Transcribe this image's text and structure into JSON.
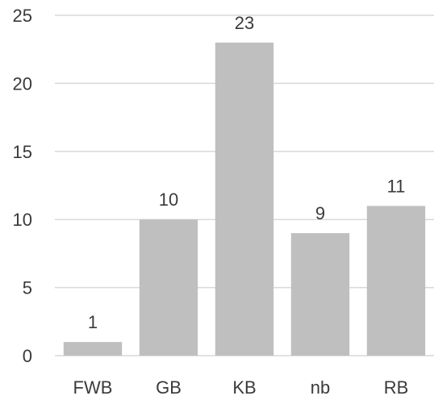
{
  "chart_data": {
    "type": "bar",
    "categories": [
      "FWB",
      "GB",
      "KB",
      "nb",
      "RB"
    ],
    "values": [
      1,
      10,
      23,
      9,
      11
    ],
    "data_labels": [
      "1",
      "10",
      "23",
      "9",
      "11"
    ],
    "title": "",
    "xlabel": "",
    "ylabel": "",
    "ylim": [
      0,
      25
    ],
    "yticks": [
      0,
      5,
      10,
      15,
      20,
      25
    ],
    "ytick_labels": [
      "0",
      "5",
      "10",
      "15",
      "20",
      "25"
    ],
    "grid": true,
    "legend": "none",
    "colors": {
      "bar": "#bfbfbf",
      "grid": "#d9d9d9",
      "text": "#3a3a3a"
    }
  }
}
